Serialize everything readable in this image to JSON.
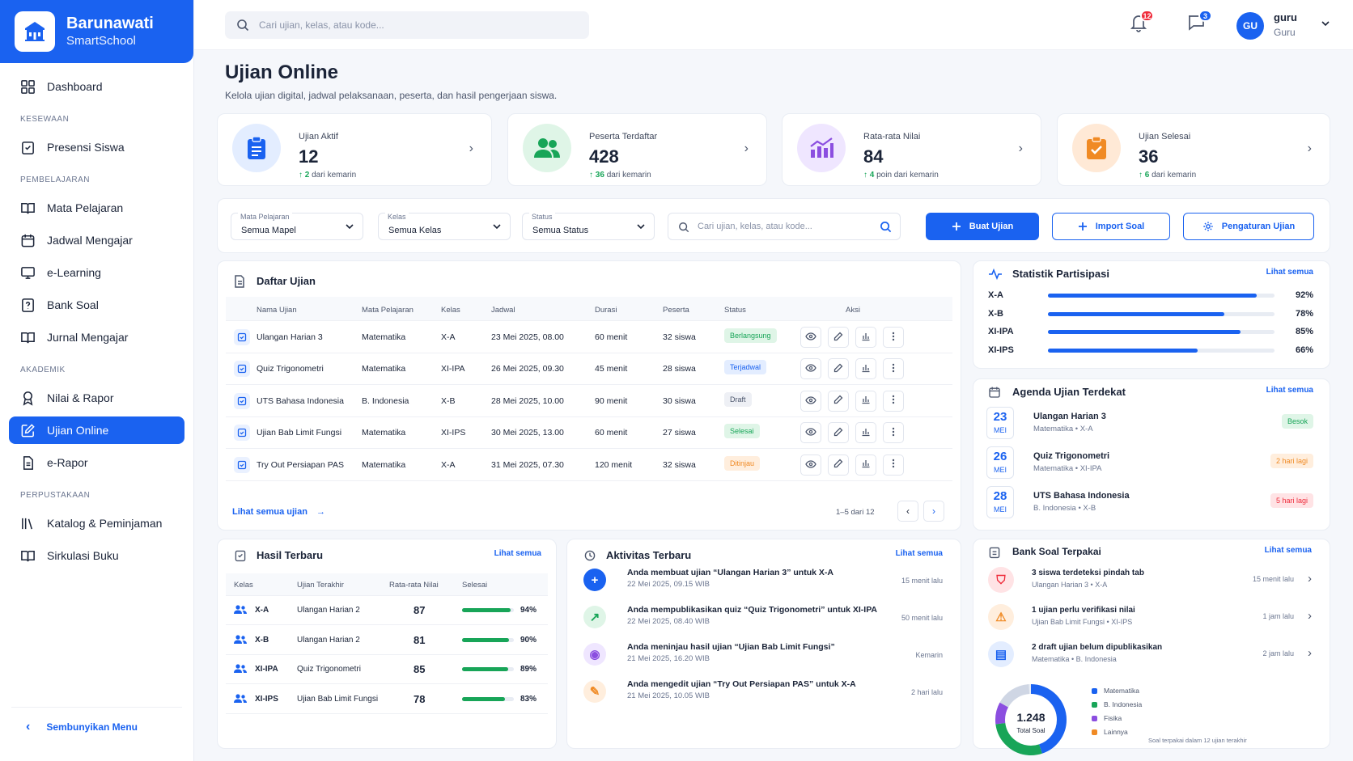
{
  "brand": {
    "name": "Barunawati",
    "sub": "SmartSchool"
  },
  "sidebar": {
    "dashboard": "Dashboard",
    "sec1": "KESEWAAN",
    "presensi": "Presensi Siswa",
    "sec2": "PEMBELAJARAN",
    "mapel": "Mata Pelajaran",
    "jadwal": "Jadwal Mengajar",
    "elearning": "e-Learning",
    "banksoal": "Bank Soal",
    "jurnal": "Jurnal Mengajar",
    "sec3": "AKADEMIK",
    "nilai": "Nilai & Rapor",
    "ujian": "Ujian Online",
    "erapor": "e-Rapor",
    "sec4": "PERPUSTAKAAN",
    "katalog": "Katalog & Peminjaman",
    "sirkulasi": "Sirkulasi Buku",
    "hide": "Sembunyikan Menu"
  },
  "topbar": {
    "search_placeholder": "Cari ujian, kelas, atau kode...",
    "notif_count": "12",
    "msg_count": "3",
    "avatar": "GU",
    "user_name": "guru",
    "user_role": "Guru"
  },
  "page": {
    "title": "Ujian Online",
    "subtitle": "Kelola ujian digital, jadwal pelaksanaan, peserta, dan hasil pengerjaan siswa."
  },
  "stats": [
    {
      "label": "Ujian Aktif",
      "value": "12",
      "delta": "2",
      "delta_text": "dari kemarin"
    },
    {
      "label": "Peserta Terdaftar",
      "value": "428",
      "delta": "36",
      "delta_text": "dari kemarin"
    },
    {
      "label": "Rata-rata Nilai",
      "value": "84",
      "delta": "4",
      "delta_text": "poin dari kemarin"
    },
    {
      "label": "Ujian Selesai",
      "value": "36",
      "delta": "6",
      "delta_text": "dari kemarin"
    }
  ],
  "filters": {
    "mapel_label": "Mata Pelajaran",
    "mapel_value": "Semua Mapel",
    "kelas_label": "Kelas",
    "kelas_value": "Semua Kelas",
    "status_label": "Status",
    "status_value": "Semua Status",
    "search_placeholder": "Cari ujian, kelas, atau kode...",
    "btn_buat": "Buat Ujian",
    "btn_import": "Import Soal",
    "btn_settings": "Pengaturan Ujian"
  },
  "daftar": {
    "title": "Daftar Ujian",
    "headers": [
      "Nama Ujian",
      "Mata Pelajaran",
      "Kelas",
      "Jadwal",
      "Durasi",
      "Peserta",
      "Status",
      "Aksi"
    ],
    "rows": [
      {
        "nama": "Ulangan Harian 3",
        "mapel": "Matematika",
        "kelas": "X-A",
        "jadwal": "23 Mei 2025, 08.00",
        "durasi": "60 menit",
        "peserta": "32 siswa",
        "status": "Berlangsung"
      },
      {
        "nama": "Quiz Trigonometri",
        "mapel": "Matematika",
        "kelas": "XI-IPA",
        "jadwal": "26 Mei 2025, 09.30",
        "durasi": "45 menit",
        "peserta": "28 siswa",
        "status": "Terjadwal"
      },
      {
        "nama": "UTS Bahasa Indonesia",
        "mapel": "B. Indonesia",
        "kelas": "X-B",
        "jadwal": "28 Mei 2025, 10.00",
        "durasi": "90 menit",
        "peserta": "30 siswa",
        "status": "Draft"
      },
      {
        "nama": "Ujian Bab Limit Fungsi",
        "mapel": "Matematika",
        "kelas": "XI-IPS",
        "jadwal": "30 Mei 2025, 13.00",
        "durasi": "60 menit",
        "peserta": "27 siswa",
        "status": "Selesai"
      },
      {
        "nama": "Try Out Persiapan PAS",
        "mapel": "Matematika",
        "kelas": "X-A",
        "jadwal": "31 Mei 2025, 07.30",
        "durasi": "120 menit",
        "peserta": "32 siswa",
        "status": "Ditinjau"
      }
    ],
    "footer_link": "Lihat semua ujian",
    "pagination": "1–5 dari 12"
  },
  "statistik": {
    "title": "Statistik Partisipasi",
    "link": "Lihat semua",
    "items": [
      {
        "kelas": "X-A",
        "pct": "92%",
        "value": 0.92
      },
      {
        "kelas": "X-B",
        "pct": "78%",
        "value": 0.78
      },
      {
        "kelas": "XI-IPA",
        "pct": "85%",
        "value": 0.85
      },
      {
        "kelas": "XI-IPS",
        "pct": "66%",
        "value": 0.66
      }
    ]
  },
  "agenda": {
    "title": "Agenda Ujian Terdekat",
    "link": "Lihat semua",
    "items": [
      {
        "day": "23",
        "month": "MEI",
        "name": "Ulangan Harian 3",
        "meta": "Matematika • X-A",
        "badge": "Besok"
      },
      {
        "day": "26",
        "month": "MEI",
        "name": "Quiz Trigonometri",
        "meta": "Matematika • XI-IPA",
        "badge": "2 hari lagi"
      },
      {
        "day": "28",
        "month": "MEI",
        "name": "UTS Bahasa Indonesia",
        "meta": "B. Indonesia • X-B",
        "badge": "5 hari lagi"
      }
    ]
  },
  "hasil": {
    "title": "Hasil Terbaru",
    "link": "Lihat semua",
    "headers": [
      "Kelas",
      "Ujian Terakhir",
      "Rata-rata Nilai",
      "Selesai"
    ],
    "rows": [
      {
        "kelas": "X-A",
        "ujian": "Ulangan Harian 2",
        "nilai": "87",
        "pct": "94%",
        "value": 0.94
      },
      {
        "kelas": "X-B",
        "ujian": "Ulangan Harian 2",
        "nilai": "81",
        "pct": "90%",
        "value": 0.9
      },
      {
        "kelas": "XI-IPA",
        "ujian": "Quiz Trigonometri",
        "nilai": "85",
        "pct": "89%",
        "value": 0.89
      },
      {
        "kelas": "XI-IPS",
        "ujian": "Ujian Bab Limit Fungsi",
        "nilai": "78",
        "pct": "83%",
        "value": 0.83
      }
    ]
  },
  "aktivitas": {
    "title": "Aktivitas Terbaru",
    "link": "Lihat semua",
    "items": [
      {
        "text": "Anda membuat ujian “Ulangan Harian 3” untuk X-A",
        "date": "22 Mei 2025, 09.15 WIB",
        "ago": "15 menit lalu"
      },
      {
        "text": "Anda mempublikasikan quiz “Quiz Trigonometri” untuk XI-IPA",
        "date": "22 Mei 2025, 08.40 WIB",
        "ago": "50 menit lalu"
      },
      {
        "text": "Anda meninjau hasil ujian “Ujian Bab Limit Fungsi”",
        "date": "21 Mei 2025, 16.20 WIB",
        "ago": "Kemarin"
      },
      {
        "text": "Anda mengedit ujian “Try Out Persiapan PAS” untuk X-A",
        "date": "21 Mei 2025, 10.05 WIB",
        "ago": "2 hari lalu"
      }
    ]
  },
  "banksoal": {
    "title": "Bank Soal Terpakai",
    "link": "Lihat semua",
    "items": [
      {
        "text": "3 siswa terdeteksi pindah tab",
        "meta": "Ulangan Harian 3 • X-A",
        "ago": "15 menit lalu"
      },
      {
        "text": "1 ujian perlu verifikasi nilai",
        "meta": "Ujian Bab Limit Fungsi • XI-IPS",
        "ago": "1 jam lalu"
      },
      {
        "text": "2 draft ujian belum dipublikasikan",
        "meta": "Matematika • B. Indonesia",
        "ago": "2 jam lalu"
      }
    ],
    "total": "1.248",
    "total_label": "Total Soal",
    "legend": [
      "Matematika",
      "B. Indonesia",
      "Fisika",
      "Lainnya"
    ],
    "note": "Soal terpakai dalam 12 ujian terakhir"
  },
  "colors": {
    "primary": "#1a62f0",
    "success": "#18a558",
    "warning": "#f08a24",
    "danger": "#ef2b3a",
    "purple": "#8b4ee0"
  }
}
